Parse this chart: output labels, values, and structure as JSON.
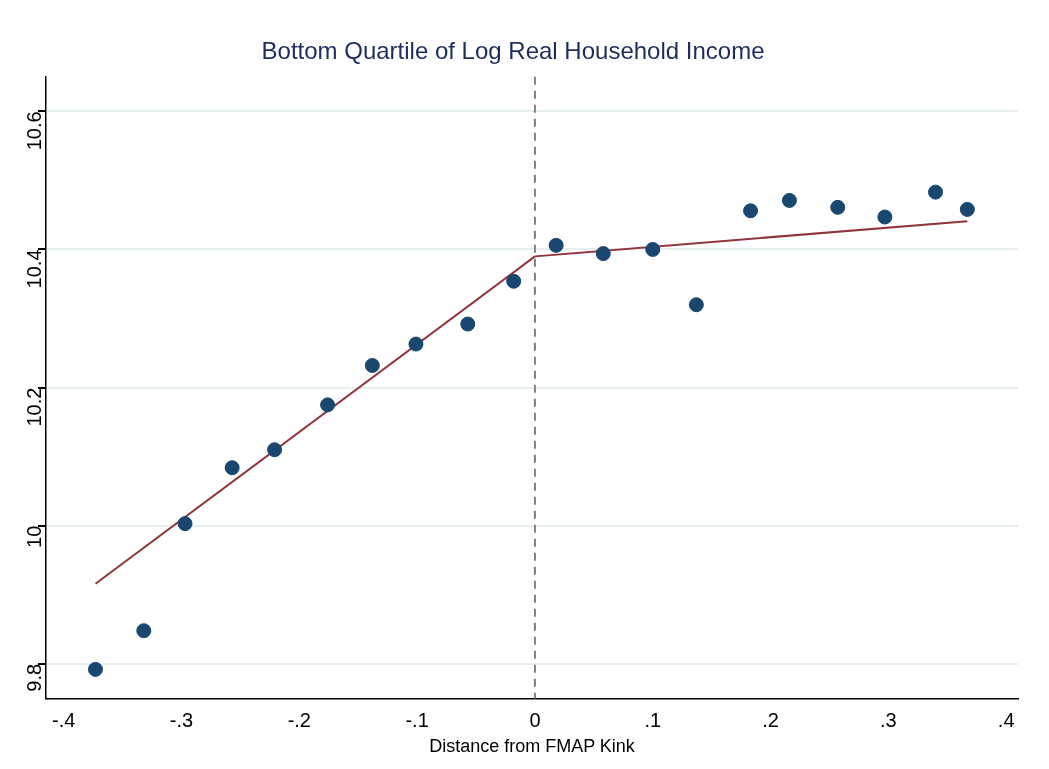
{
  "chart_data": {
    "type": "scatter",
    "title": "Bottom Quartile of Log Real Household Income",
    "xlabel": "Distance from FMAP Kink",
    "xlim": [
      -0.415,
      0.41
    ],
    "xticks": [
      {
        "value": -0.4,
        "label": "-.4"
      },
      {
        "value": -0.3,
        "label": "-.3"
      },
      {
        "value": -0.2,
        "label": "-.2"
      },
      {
        "value": -0.1,
        "label": "-.1"
      },
      0,
      {
        "value": 0.1,
        "label": ".1"
      },
      {
        "value": 0.2,
        "label": ".2"
      },
      {
        "value": 0.3,
        "label": ".3"
      },
      {
        "value": 0.4,
        "label": ".4"
      }
    ],
    "ylim": [
      9.75,
      10.65
    ],
    "yticks": [
      9.8,
      10,
      10.2,
      10.4,
      10.6
    ],
    "grid": "y",
    "legend": false,
    "series": [
      {
        "type": "scatter",
        "marker": "circle",
        "color": "#1a476f",
        "x": [
          -0.373,
          -0.332,
          -0.297,
          -0.257,
          -0.221,
          -0.176,
          -0.138,
          -0.101,
          -0.057,
          -0.018,
          0.018,
          0.058,
          0.1,
          0.137,
          0.183,
          0.216,
          0.257,
          0.297,
          0.34,
          0.367
        ],
        "values": [
          9.792,
          9.848,
          10.003,
          10.084,
          10.11,
          10.175,
          10.232,
          10.263,
          10.292,
          10.354,
          10.406,
          10.394,
          10.4,
          10.32,
          10.456,
          10.471,
          10.461,
          10.447,
          10.483,
          10.458
        ]
      },
      {
        "type": "line",
        "color": "#90353b",
        "x": [
          -0.373,
          0
        ],
        "values": [
          9.916,
          10.39
        ]
      },
      {
        "type": "line",
        "color": "#90353b",
        "x": [
          0,
          0.367
        ],
        "values": [
          10.39,
          10.441
        ]
      }
    ],
    "ref_lines": [
      {
        "axis": "x",
        "value": 0,
        "color": "#808080",
        "line_style": "dashed"
      }
    ]
  }
}
